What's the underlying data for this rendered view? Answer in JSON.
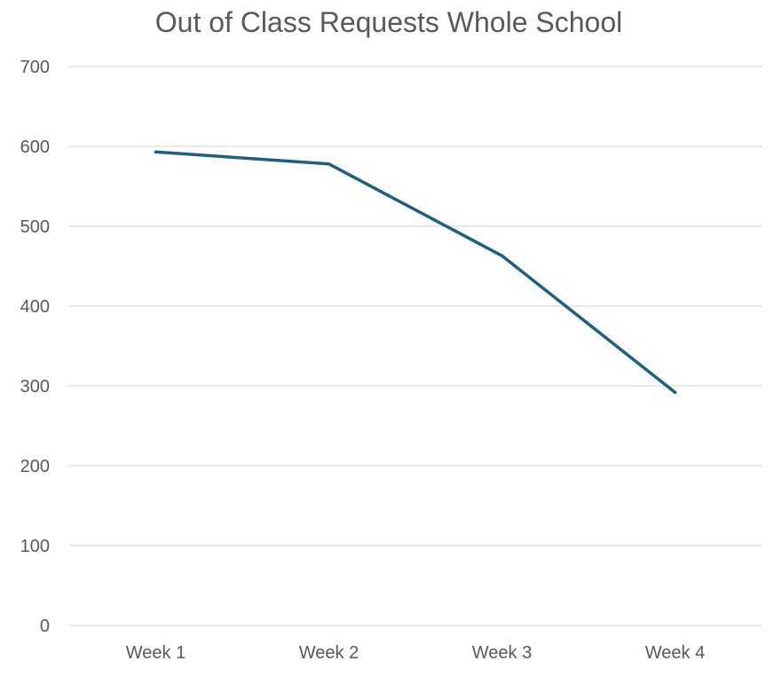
{
  "chart_data": {
    "type": "line",
    "title": "Out of Class Requests Whole School",
    "xlabel": "",
    "ylabel": "",
    "categories": [
      "Week 1",
      "Week 2",
      "Week 3",
      "Week 4"
    ],
    "series": [
      {
        "values": [
          593,
          578,
          463,
          292
        ]
      }
    ],
    "ylim": [
      0,
      700
    ],
    "yticks": [
      "0",
      "100",
      "200",
      "300",
      "400",
      "500",
      "600",
      "700"
    ],
    "grid": true,
    "legend": "none",
    "colors": {
      "series": "#1f5f7f",
      "grid": "#d9d9d9",
      "text": "#595959"
    }
  }
}
